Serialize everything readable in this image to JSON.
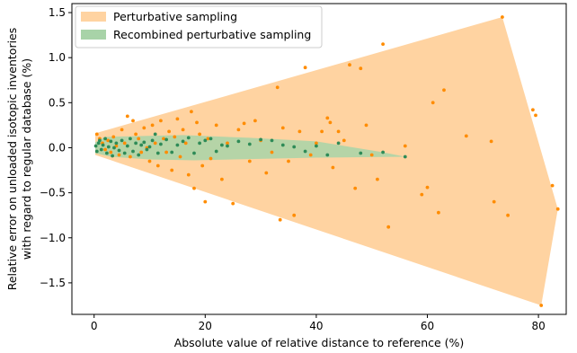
{
  "chart_data": {
    "type": "scatter",
    "title": "",
    "xlabel": "Absolute value of relative distance to reference (%)",
    "ylabel_lines": [
      "Relative error on unloaded isotopic inventories",
      "with regard to regular database (%)"
    ],
    "xlim": [
      -4,
      85
    ],
    "ylim": [
      -1.85,
      1.6
    ],
    "xticks": [
      0,
      20,
      40,
      60,
      80
    ],
    "yticks": [
      -1.5,
      -1.0,
      -0.5,
      0.0,
      0.5,
      1.0,
      1.5
    ],
    "ytick_labels": [
      "−1.5",
      "−1.0",
      "−0.5",
      "0.0",
      "0.5",
      "1.0",
      "1.5"
    ],
    "grid": false,
    "legend_position": "top-left",
    "series": [
      {
        "name": "Perturbative sampling",
        "color": "#ff8c00",
        "fill_color": "#ffd3a1",
        "hull": [
          [
            0.2,
            0.16
          ],
          [
            73.5,
            1.45
          ],
          [
            83.5,
            -0.68
          ],
          [
            80.5,
            -1.75
          ],
          [
            0.2,
            -0.08
          ]
        ],
        "points": [
          [
            0.5,
            0.15
          ],
          [
            1,
            0.1
          ],
          [
            1.5,
            0.05
          ],
          [
            2,
            -0.02
          ],
          [
            2.5,
            0.08
          ],
          [
            3,
            -0.05
          ],
          [
            3.5,
            0.12
          ],
          [
            4,
            0.02
          ],
          [
            4.5,
            -0.08
          ],
          [
            5,
            0.2
          ],
          [
            5.5,
            0.05
          ],
          [
            6,
            0.35
          ],
          [
            6.5,
            -0.1
          ],
          [
            7,
            0.3
          ],
          [
            7.5,
            0.15
          ],
          [
            8,
            0.1
          ],
          [
            8.5,
            -0.05
          ],
          [
            9,
            0.22
          ],
          [
            9.5,
            0.0
          ],
          [
            10,
            -0.15
          ],
          [
            10.5,
            0.25
          ],
          [
            11,
            0.05
          ],
          [
            11.5,
            -0.2
          ],
          [
            12,
            0.3
          ],
          [
            12.5,
            0.1
          ],
          [
            13,
            -0.05
          ],
          [
            13.5,
            0.18
          ],
          [
            14,
            -0.25
          ],
          [
            14.5,
            0.12
          ],
          [
            15,
            0.32
          ],
          [
            15.5,
            -0.1
          ],
          [
            16,
            0.2
          ],
          [
            16.5,
            0.05
          ],
          [
            17,
            -0.3
          ],
          [
            17.5,
            0.4
          ],
          [
            18,
            -0.45
          ],
          [
            18.5,
            0.28
          ],
          [
            19,
            0.15
          ],
          [
            19.5,
            -0.2
          ],
          [
            20,
            -0.6
          ],
          [
            20.5,
            0.1
          ],
          [
            21,
            -0.12
          ],
          [
            22,
            0.25
          ],
          [
            23,
            -0.35
          ],
          [
            24,
            0.05
          ],
          [
            25,
            -0.62
          ],
          [
            26,
            0.2
          ],
          [
            27,
            0.27
          ],
          [
            28,
            -0.15
          ],
          [
            29,
            0.3
          ],
          [
            30,
            0.08
          ],
          [
            31,
            -0.28
          ],
          [
            32,
            -0.05
          ],
          [
            33,
            0.67
          ],
          [
            33.5,
            -0.8
          ],
          [
            34,
            0.22
          ],
          [
            35,
            -0.15
          ],
          [
            36,
            -0.75
          ],
          [
            37,
            0.18
          ],
          [
            38,
            0.89
          ],
          [
            39,
            -0.08
          ],
          [
            40,
            0.05
          ],
          [
            41,
            0.18
          ],
          [
            42,
            0.33
          ],
          [
            42.5,
            0.28
          ],
          [
            43,
            -0.22
          ],
          [
            44,
            0.18
          ],
          [
            45,
            0.08
          ],
          [
            46,
            0.92
          ],
          [
            47,
            -0.45
          ],
          [
            48,
            0.88
          ],
          [
            49,
            0.25
          ],
          [
            50,
            -0.08
          ],
          [
            51,
            -0.35
          ],
          [
            52,
            1.15
          ],
          [
            53,
            -0.88
          ],
          [
            56,
            0.02
          ],
          [
            59,
            -0.52
          ],
          [
            60,
            -0.44
          ],
          [
            61,
            0.5
          ],
          [
            62,
            -0.72
          ],
          [
            63,
            0.64
          ],
          [
            67,
            0.13
          ],
          [
            71.5,
            0.07
          ],
          [
            72,
            -0.6
          ],
          [
            73.5,
            1.45
          ],
          [
            74.5,
            -0.75
          ],
          [
            79,
            0.42
          ],
          [
            79.5,
            0.36
          ],
          [
            80.5,
            -1.75
          ],
          [
            82.5,
            -0.42
          ],
          [
            83.5,
            -0.68
          ]
        ]
      },
      {
        "name": "Recombined perturbative sampling",
        "color": "#2e8b57",
        "fill_color": "#a8d3a8",
        "hull": [
          [
            0.2,
            0.06
          ],
          [
            2,
            0.12
          ],
          [
            16,
            0.14
          ],
          [
            28,
            0.11
          ],
          [
            40,
            0.07
          ],
          [
            52,
            -0.05
          ],
          [
            56,
            -0.1
          ],
          [
            40,
            -0.11
          ],
          [
            18,
            -0.14
          ],
          [
            10,
            -0.13
          ],
          [
            3,
            -0.1
          ],
          [
            0.2,
            -0.06
          ]
        ],
        "points": [
          [
            0.3,
            0.02
          ],
          [
            0.5,
            -0.04
          ],
          [
            0.8,
            0.05
          ],
          [
            1,
            0.08
          ],
          [
            1.3,
            -0.02
          ],
          [
            1.6,
            0.03
          ],
          [
            2,
            0.1
          ],
          [
            2.3,
            -0.06
          ],
          [
            2.6,
            0.01
          ],
          [
            3,
            0.07
          ],
          [
            3.3,
            -0.09
          ],
          [
            3.6,
            0.0
          ],
          [
            4,
            0.05
          ],
          [
            4.5,
            -0.03
          ],
          [
            5,
            0.08
          ],
          [
            5.5,
            -0.06
          ],
          [
            6,
            0.02
          ],
          [
            6.5,
            0.1
          ],
          [
            7,
            -0.04
          ],
          [
            7.5,
            0.05
          ],
          [
            8,
            -0.08
          ],
          [
            8.5,
            0.03
          ],
          [
            9,
            0.06
          ],
          [
            9.5,
            -0.02
          ],
          [
            10,
            0.01
          ],
          [
            10.5,
            0.08
          ],
          [
            11,
            0.15
          ],
          [
            11.5,
            -0.06
          ],
          [
            12,
            0.04
          ],
          [
            13,
            0.09
          ],
          [
            14,
            -0.05
          ],
          [
            15,
            0.03
          ],
          [
            16,
            0.07
          ],
          [
            17,
            0.11
          ],
          [
            18,
            -0.06
          ],
          [
            19,
            0.05
          ],
          [
            20,
            0.08
          ],
          [
            21,
            0.1
          ],
          [
            22,
            -0.04
          ],
          [
            23,
            0.03
          ],
          [
            24,
            0.02
          ],
          [
            26,
            0.07
          ],
          [
            28,
            0.04
          ],
          [
            30,
            0.09
          ],
          [
            32,
            0.08
          ],
          [
            34,
            0.03
          ],
          [
            36,
            0.01
          ],
          [
            38,
            -0.04
          ],
          [
            40,
            0.02
          ],
          [
            42,
            -0.08
          ],
          [
            44,
            0.05
          ],
          [
            48,
            -0.06
          ],
          [
            52,
            -0.05
          ],
          [
            56,
            -0.1
          ]
        ]
      }
    ]
  }
}
